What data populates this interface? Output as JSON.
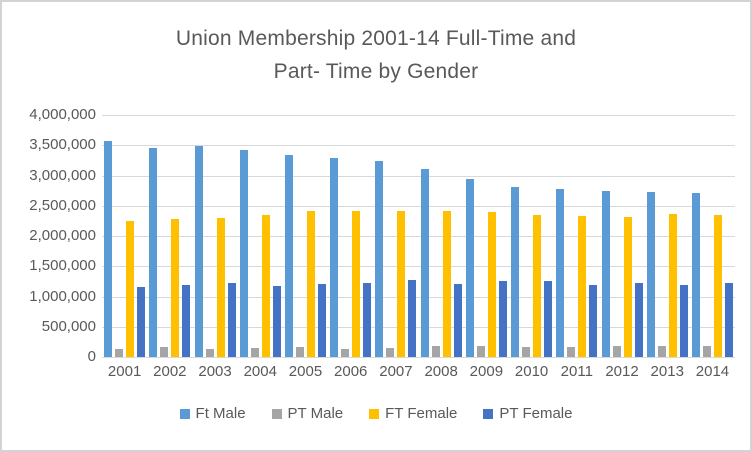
{
  "chart_data": {
    "type": "bar",
    "title": "Union Membership 2001-14 Full-Time and Part- Time by Gender",
    "title_lines": [
      "Union Membership 2001-14 Full-Time and",
      "Part- Time by Gender"
    ],
    "xlabel": "",
    "ylabel": "",
    "categories": [
      "2001",
      "2002",
      "2003",
      "2004",
      "2005",
      "2006",
      "2007",
      "2008",
      "2009",
      "2010",
      "2011",
      "2012",
      "2013",
      "2014"
    ],
    "series": [
      {
        "name": "Ft Male",
        "color": "#5B9BD5",
        "values": [
          3570000,
          3460000,
          3480000,
          3420000,
          3340000,
          3290000,
          3240000,
          3100000,
          2940000,
          2810000,
          2770000,
          2750000,
          2730000,
          2710000
        ]
      },
      {
        "name": "PT Male",
        "color": "#A5A5A5",
        "values": [
          130000,
          160000,
          130000,
          150000,
          160000,
          140000,
          150000,
          180000,
          180000,
          160000,
          170000,
          190000,
          180000,
          190000
        ]
      },
      {
        "name": "FT Female",
        "color": "#FFC000",
        "values": [
          2240000,
          2280000,
          2300000,
          2350000,
          2420000,
          2420000,
          2420000,
          2420000,
          2400000,
          2340000,
          2330000,
          2320000,
          2370000,
          2340000
        ]
      },
      {
        "name": "PT Female",
        "color": "#4472C4",
        "values": [
          1150000,
          1190000,
          1230000,
          1180000,
          1210000,
          1220000,
          1270000,
          1210000,
          1250000,
          1260000,
          1190000,
          1230000,
          1190000,
          1220000
        ]
      }
    ],
    "y_axis": {
      "min": 0,
      "max": 4000000,
      "step": 500000,
      "tick_labels": [
        "0",
        "500,000",
        "1,000,000",
        "1,500,000",
        "2,000,000",
        "2,500,000",
        "3,000,000",
        "3,500,000",
        "4,000,000"
      ]
    },
    "layout": {
      "grid": true,
      "gridline_color": "#D9D9D9",
      "legend_position": "bottom",
      "text_color": "#595959",
      "background_color": "#FFFFFF",
      "border_color": "#D3D3D3"
    }
  }
}
